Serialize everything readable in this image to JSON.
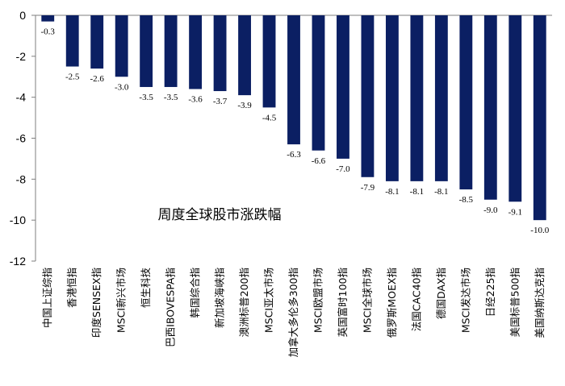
{
  "chart_data": {
    "type": "bar",
    "title": "周度全球股市涨跌幅",
    "xlabel": "",
    "ylabel": "",
    "ylim": [
      -12,
      0
    ],
    "yticks": [
      0,
      -2,
      -4,
      -6,
      -8,
      -10,
      -12
    ],
    "grid": false,
    "legend": "none",
    "bar_color": "#0b1f63",
    "categories": [
      "中国上证综指",
      "香港恒指",
      "印度SENSEX指",
      "MSCI新兴市场",
      "恒生科技",
      "巴西IBOVESPA指",
      "韩国综合指",
      "新加坡海峡指",
      "澳洲标普200指",
      "MSCI亚太市场",
      "加拿大多伦多300指",
      "MSCI欧盟市场",
      "英国富时100指",
      "MSCI全球市场",
      "俄罗斯MOEX指",
      "法国CAC40指",
      "德国DAX指",
      "MSCI发达市场",
      "日经225指",
      "美国标普500指",
      "美国纳斯达克指"
    ],
    "values": [
      -0.3,
      -2.5,
      -2.6,
      -3.0,
      -3.5,
      -3.5,
      -3.6,
      -3.7,
      -3.9,
      -4.5,
      -6.3,
      -6.6,
      -7.0,
      -7.9,
      -8.1,
      -8.1,
      -8.1,
      -8.5,
      -9.0,
      -9.1,
      -10.0
    ],
    "data_labels": [
      "-0.3",
      "-2.5",
      "-2.6",
      "-3.0",
      "-3.5",
      "-3.5",
      "-3.6",
      "-3.7",
      "-3.9",
      "-4.5",
      "-6.3",
      "-6.6",
      "-7.0",
      "-7.9",
      "-8.1",
      "-8.1",
      "-8.1",
      "-8.5",
      "-9.0",
      "-9.1",
      "-10.0"
    ]
  }
}
